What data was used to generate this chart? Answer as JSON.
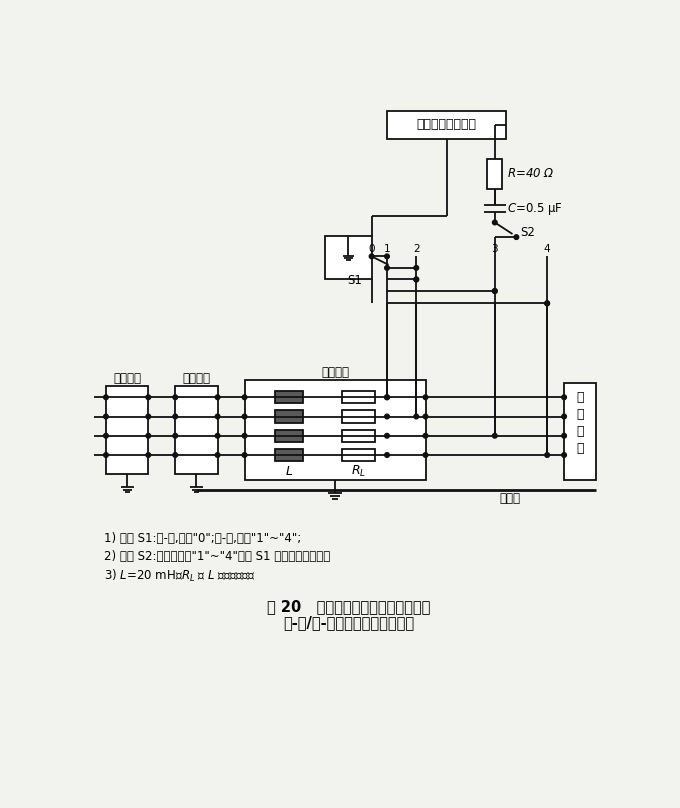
{
  "title_line1": "图 20   非屏蔽互连线试验配置示例；",
  "title_line2": "线-线/线-地耦合，用电容器耦合",
  "notes": [
    "1) 开关 S1:线-地,置于\"0\";线-线,置于\"1\"~\"4\";",
    "2) 开关 S2:试验时置于\"1\"~\"4\"但与 S1 不在相同的位置。",
    "3) $L$=20 mH,$R_L$ 为 $L$ 的电阻部分。"
  ],
  "bg_color": "#f2f2ee",
  "line_color": "#111111"
}
